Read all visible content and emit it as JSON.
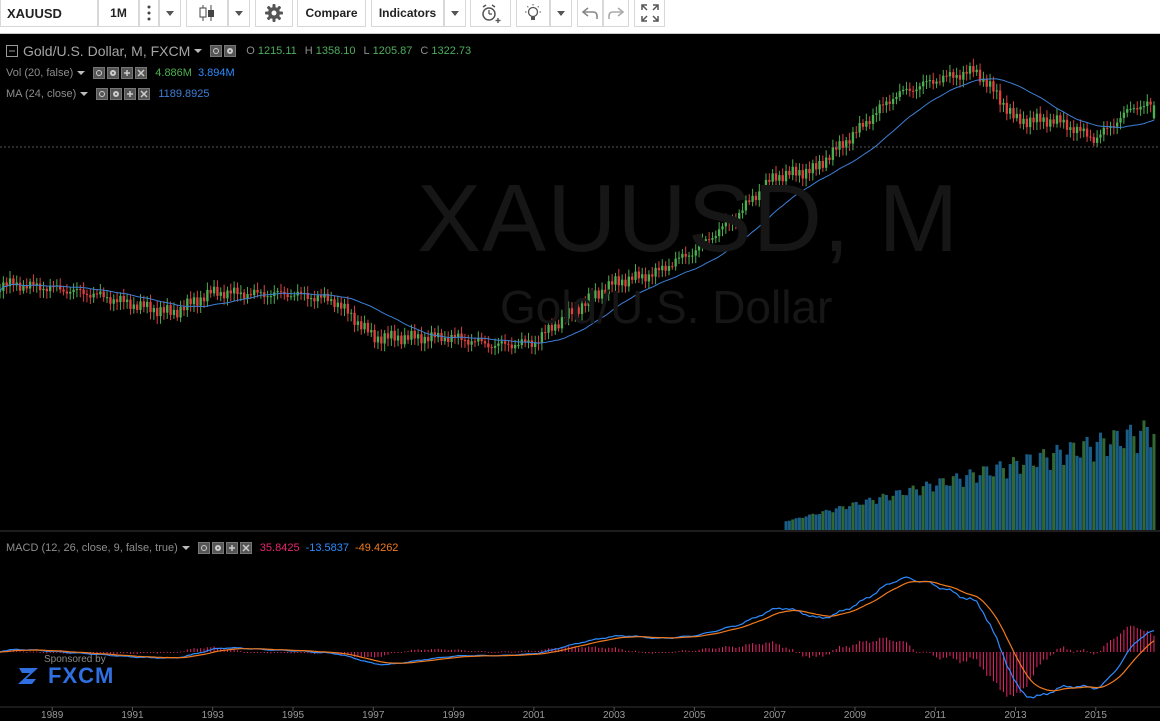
{
  "toolbar": {
    "symbol": "XAUUSD",
    "interval": "1M",
    "compare_label": "Compare",
    "indicators_label": "Indicators"
  },
  "legend": {
    "title": "Gold/U.S. Dollar, M, FXCM",
    "ohlc": {
      "o_label": "O",
      "o": "1215.11",
      "h_label": "H",
      "h": "1358.10",
      "l_label": "L",
      "l": "1205.87",
      "c_label": "C",
      "c": "1322.73"
    },
    "vol": {
      "label": "Vol (20, false)",
      "v1": "4.886M",
      "v2": "3.894M"
    },
    "ma": {
      "label": "MA (24, close)",
      "value": "1189.8925"
    },
    "macd": {
      "label": "MACD (12, 26, close, 9, false, true)",
      "hist": "35.8425",
      "macd": "-13.5837",
      "signal": "-49.4262"
    }
  },
  "watermark": {
    "symbol": "XAUUSD, M",
    "name": "Gold/U.S. Dollar"
  },
  "axis": {
    "years": [
      "1989",
      "1991",
      "1993",
      "1995",
      "1997",
      "1999",
      "2001",
      "2003",
      "2005",
      "2007",
      "2009",
      "2011",
      "2013",
      "2015"
    ]
  },
  "sponsor": {
    "label": "Sponsored by",
    "brand": "FXCM"
  },
  "colors": {
    "up": "#4caf50",
    "down": "#e04040",
    "ma": "#3d7fd6",
    "macd": "#2e8bff",
    "signal": "#f07a1e",
    "hist": "#e6266b",
    "volume": "#1e6fa0"
  },
  "chart_data": {
    "type": "candlestick",
    "title": "Gold/U.S. Dollar, M, FXCM",
    "years": [
      1988,
      1989,
      1990,
      1991,
      1992,
      1993,
      1994,
      1995,
      1996,
      1997,
      1998,
      1999,
      2000,
      2001,
      2002,
      2003,
      2004,
      2005,
      2006,
      2007,
      2008,
      2009,
      2010,
      2011,
      2012,
      2013,
      2014,
      2015,
      2016
    ],
    "yearly_close": [
      410,
      400,
      385,
      360,
      340,
      390,
      385,
      385,
      370,
      290,
      290,
      290,
      275,
      280,
      345,
      415,
      440,
      510,
      630,
      830,
      870,
      1100,
      1410,
      1560,
      1660,
      1200,
      1200,
      1060,
      1320
    ],
    "price_range": [
      200,
      2000
    ],
    "last_bar": {
      "open": 1215.11,
      "high": 1358.1,
      "low": 1205.87,
      "close": 1322.73
    },
    "ma_period": 24,
    "ma_last": 1189.8925,
    "volume_last": "4.886M",
    "volume_ma": "3.894M",
    "macd_last": {
      "histogram": 35.8425,
      "macd": -13.5837,
      "signal": -49.4262
    }
  }
}
